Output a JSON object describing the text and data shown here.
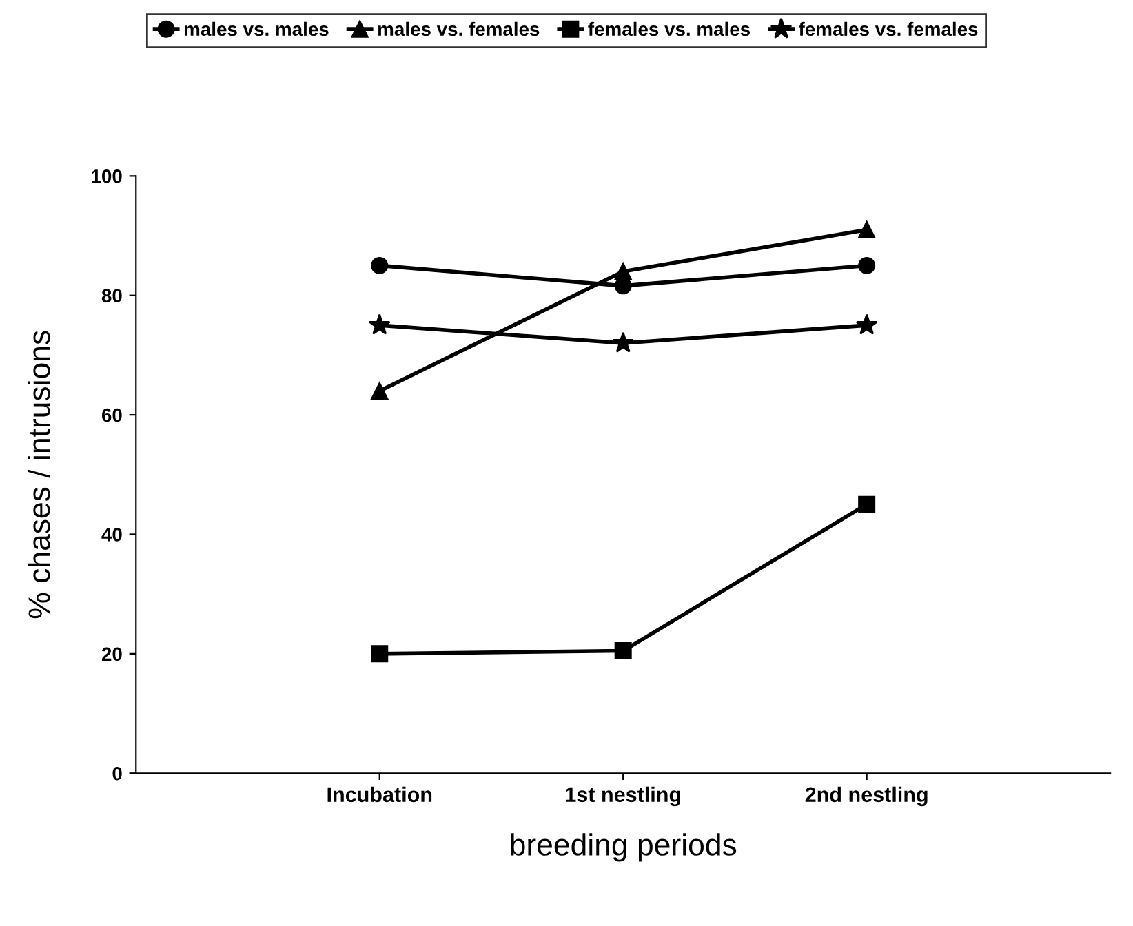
{
  "chart_data": {
    "type": "line",
    "xlabel": "breeding periods",
    "ylabel": "% chases / intrusions",
    "categories": [
      "Incubation",
      "1st nestling",
      "2nd nestling"
    ],
    "series": [
      {
        "name": "males vs. males",
        "color": "#000000",
        "marker": "circle",
        "values": [
          85,
          81.6,
          85
        ]
      },
      {
        "name": "males vs. females",
        "color": "#000000",
        "marker": "triangle",
        "values": [
          64,
          84,
          91
        ]
      },
      {
        "name": "females vs. males",
        "color": "#000000",
        "marker": "square",
        "values": [
          20,
          20.5,
          45
        ]
      },
      {
        "name": "females vs. females",
        "color": "#000000",
        "marker": "star",
        "values": [
          75,
          72,
          75
        ]
      }
    ],
    "ylim": [
      0,
      100
    ],
    "yticks": [
      0,
      20,
      40,
      60,
      80,
      100
    ],
    "grid": false,
    "legend": "top",
    "line_style": "solid"
  }
}
